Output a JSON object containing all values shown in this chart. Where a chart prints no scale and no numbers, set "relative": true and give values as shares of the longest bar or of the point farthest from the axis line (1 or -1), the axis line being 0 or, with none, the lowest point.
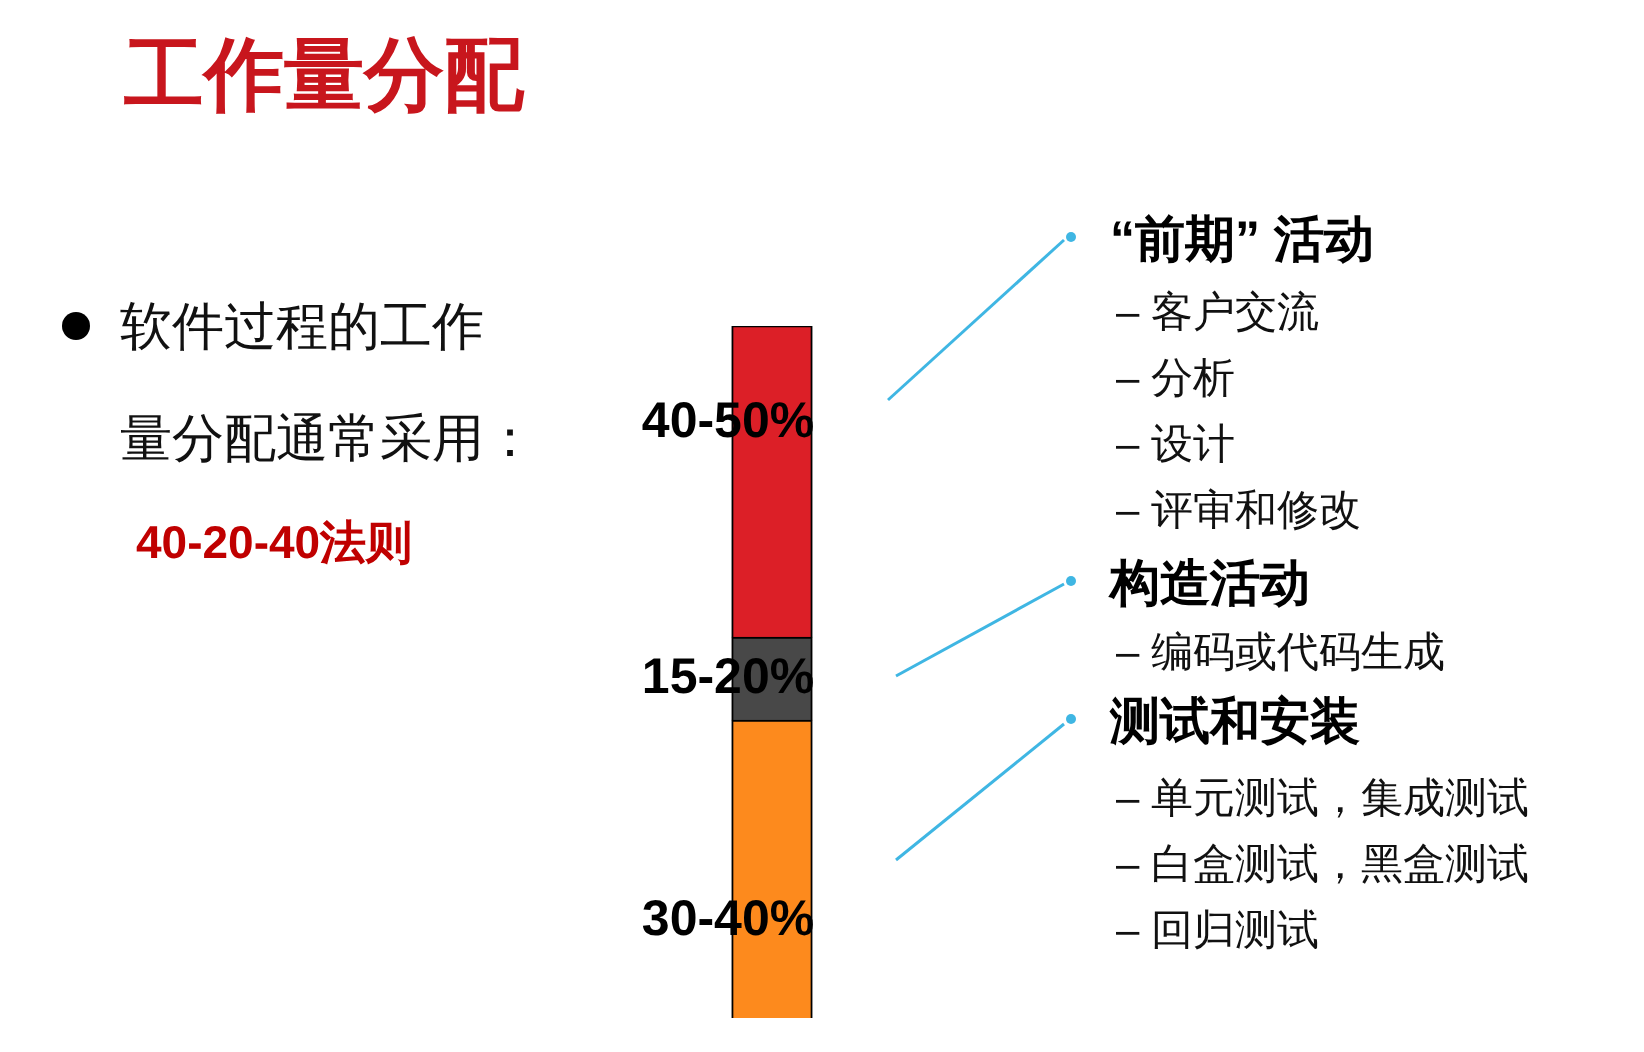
{
  "chart_data": {
    "type": "bar",
    "title": "工作量分配",
    "categories": [
      null
    ],
    "stacked": true,
    "relative": true,
    "series": [
      {
        "color": "#fd8a1d",
        "values": [
          0.43
        ]
      },
      {
        "color": "#484848",
        "values": [
          0.12
        ]
      },
      {
        "color": "#dc1f27",
        "values": [
          0.45
        ]
      }
    ],
    "annotations": [
      "软件过程的工作量分配通常采用：",
      "40-20-40法则",
      "“前期” 活动",
      "– 客户交流",
      "– 分析",
      "– 设计",
      "– 评审和修改",
      "构造活动",
      "– 编码或代码生成",
      "测试和安装",
      "– 单元测试，集成测试",
      "– 白盒测试，黑盒测试",
      "– 回归测试",
      {
        "text": "40-50%",
        "y": 0.86
      },
      {
        "text": "15-20%",
        "y": 0.49
      },
      {
        "text": "30-40%",
        "y": 0.14
      }
    ]
  }
}
